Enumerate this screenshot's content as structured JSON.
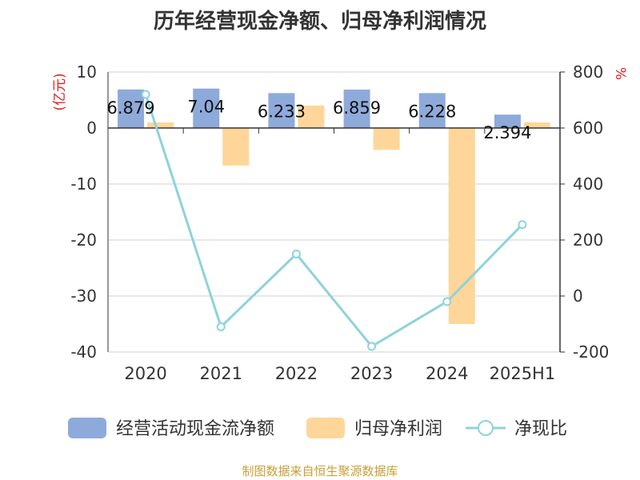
{
  "title": "历年经营现金净额、归母净利润情况",
  "source": "制图数据来自恒生聚源数据库",
  "chart_data": {
    "type": "bar",
    "categories": [
      "2020",
      "2021",
      "2022",
      "2023",
      "2024",
      "2025H1"
    ],
    "series": [
      {
        "name": "经营活动现金流净额",
        "type": "bar",
        "axis": "left",
        "color": "#8eaadb",
        "values": [
          6.879,
          7.04,
          6.233,
          6.859,
          6.228,
          2.394
        ],
        "labels": [
          "6.879",
          "7.04",
          "6.233",
          "6.859",
          "6.228",
          "2.394"
        ]
      },
      {
        "name": "归母净利润",
        "type": "bar",
        "axis": "left",
        "color": "#ffd699",
        "values": [
          1.0,
          -6.7,
          4.0,
          -3.9,
          -35.0,
          1.0
        ]
      },
      {
        "name": "净现比",
        "type": "line",
        "axis": "right",
        "color": "#8ed3da",
        "values": [
          720,
          -110,
          150,
          -180,
          -20,
          255
        ]
      }
    ],
    "y_left": {
      "label": "(亿元)",
      "ylim": [
        -40,
        10
      ],
      "ticks": [
        "10",
        "0",
        "-10",
        "-20",
        "-30",
        "-40"
      ]
    },
    "y_right": {
      "label": "%",
      "ylim": [
        -200,
        800
      ],
      "ticks": [
        "800",
        "600",
        "400",
        "200",
        "0",
        "-200"
      ]
    },
    "grid": true,
    "legend_position": "bottom"
  }
}
